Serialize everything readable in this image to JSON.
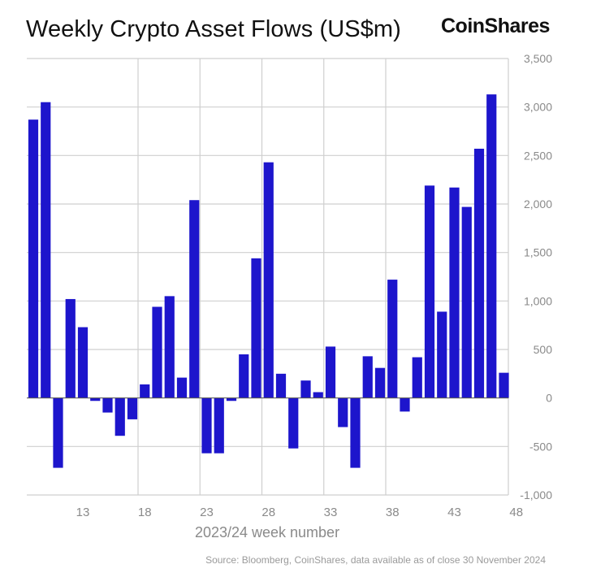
{
  "header": {
    "title": "Weekly Crypto Asset Flows (US$m)",
    "brand": "CoinShares"
  },
  "footer": {
    "source": "Source: Bloomberg, CoinShares, data available as of close 30 November 2024"
  },
  "colors": {
    "bar": "#1d15cc",
    "grid": "#cfcfcf",
    "tick_text": "#8a8a8a"
  },
  "chart_data": {
    "type": "bar",
    "title": "Weekly Crypto Asset Flows (US$m)",
    "xlabel": "2023/24 week number",
    "ylabel": "",
    "ylim": [
      -1000,
      3500
    ],
    "grid": true,
    "y_axis_side": "right",
    "yticks": [
      3500,
      3000,
      2500,
      2000,
      1500,
      1000,
      500,
      0,
      -500,
      -1000
    ],
    "ytick_labels": [
      "3,500",
      "3,000",
      "2,500",
      "2,000",
      "1,500",
      "1,000",
      "500",
      "0",
      "-500",
      "-1,000"
    ],
    "xtick_labels": [
      "13",
      "18",
      "23",
      "28",
      "33",
      "38",
      "43",
      "48"
    ],
    "categories": [
      9,
      10,
      11,
      12,
      13,
      14,
      15,
      16,
      17,
      18,
      19,
      20,
      21,
      22,
      23,
      24,
      25,
      26,
      27,
      28,
      29,
      30,
      31,
      32,
      33,
      34,
      35,
      36,
      37,
      38,
      39,
      40,
      41,
      42,
      43,
      44,
      45,
      46,
      47,
      48
    ],
    "values": [
      2870,
      3050,
      -720,
      1020,
      730,
      -30,
      -150,
      -390,
      -220,
      140,
      940,
      1050,
      210,
      2040,
      -570,
      -570,
      -30,
      450,
      1440,
      2430,
      250,
      -520,
      180,
      60,
      530,
      -300,
      -720,
      430,
      310,
      1220,
      -140,
      420,
      2190,
      890,
      2170,
      1970,
      2570,
      3130,
      260,
      0
    ]
  }
}
